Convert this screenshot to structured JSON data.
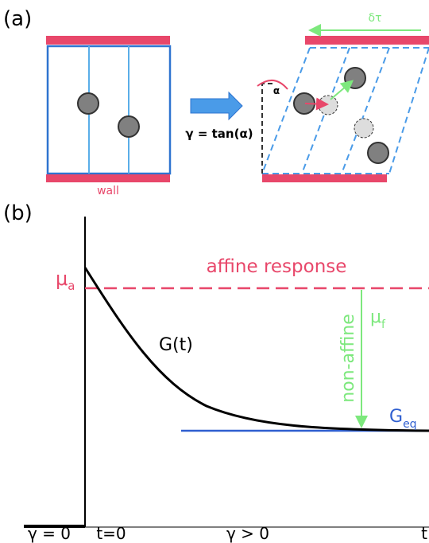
{
  "panel_a": {
    "label": "(a)",
    "wall_label": "wall",
    "shear_relation": "γ = tan(α)",
    "angle_label": "α",
    "stress_label": "δτ"
  },
  "panel_b": {
    "label": "(b)",
    "affine_modulus": {
      "symbol": "μ",
      "subscript": "a"
    },
    "affine_label": "affine response",
    "curve_label": "G(t)",
    "nonaffine_label": "non-affine",
    "nonaffine_modulus": {
      "symbol": "μ",
      "subscript": "f"
    },
    "equilibrium_modulus": {
      "symbol": "G",
      "subscript": "eq"
    },
    "x_labels": [
      "γ = 0",
      "t=0",
      "γ > 0",
      "t"
    ]
  }
}
